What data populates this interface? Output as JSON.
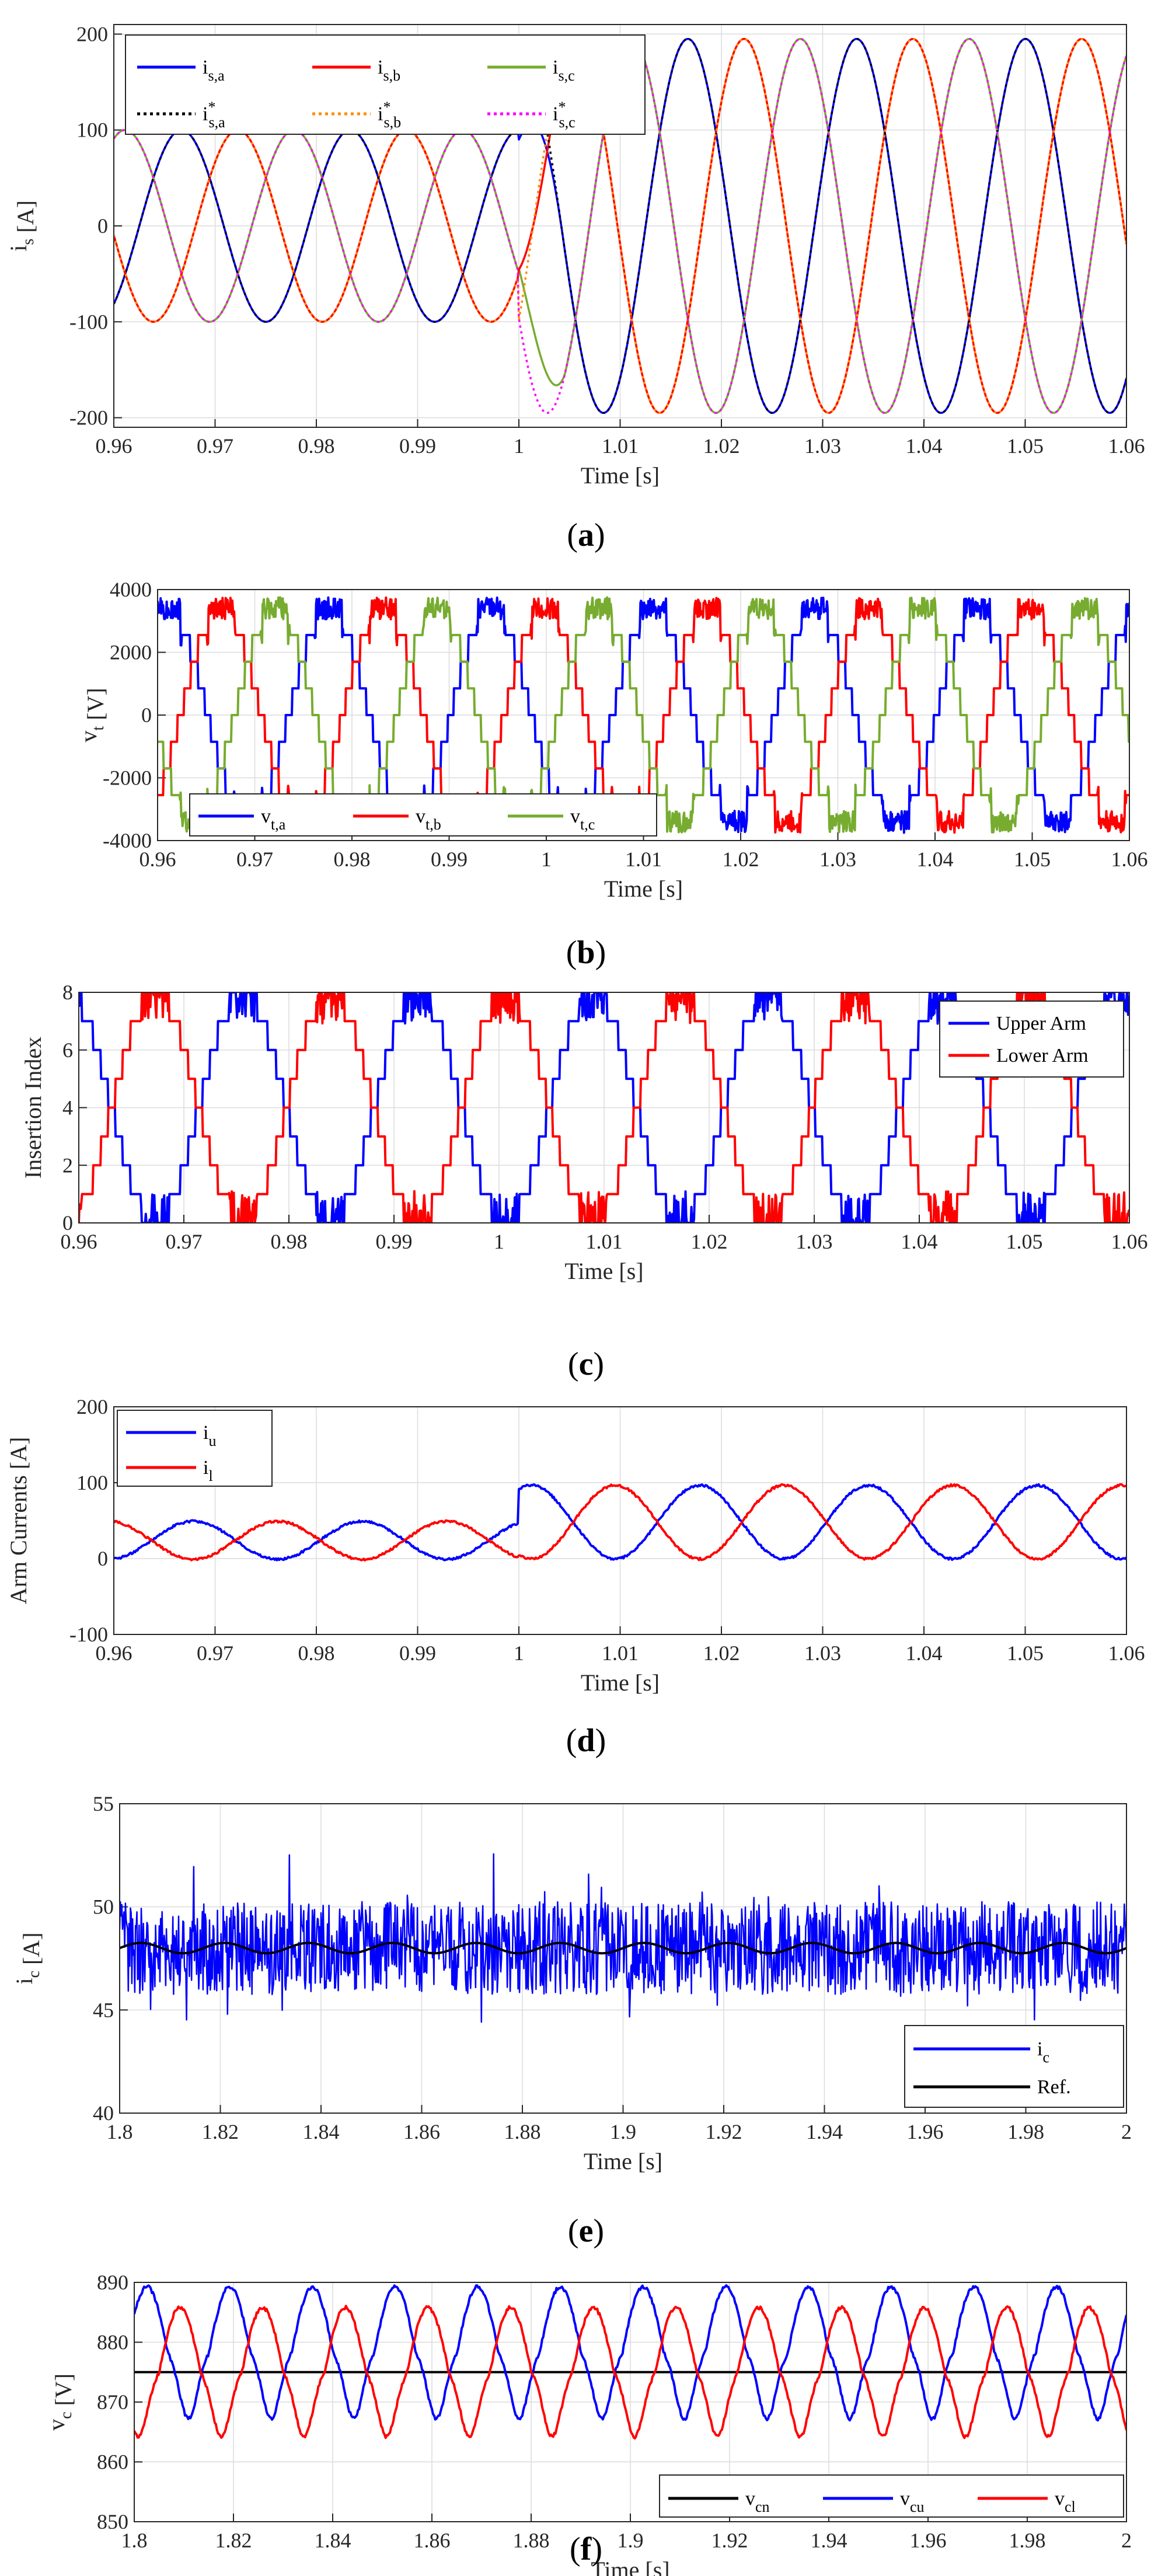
{
  "chart_data": [
    {
      "id": "a",
      "type": "line",
      "panel_label": "(a)",
      "xlabel": "Time [s]",
      "ylabel_main": "i",
      "ylabel_sub": "s",
      "ylabel_unit": " [A]",
      "xlim": [
        0.96,
        1.06
      ],
      "ylim": [
        -210,
        210
      ],
      "grid": true,
      "xticks": [
        "0.96",
        "0.97",
        "0.98",
        "0.99",
        "1",
        "1.01",
        "1.02",
        "1.03",
        "1.04",
        "1.05",
        "1.06"
      ],
      "yticks": [
        "-200",
        "-100",
        "0",
        "100",
        "200"
      ],
      "signal": {
        "frequency_hz": 60,
        "amplitude_before": 100,
        "amplitude_after": 195,
        "step_time": 1.0
      },
      "legend_position": "top-left",
      "series": [
        {
          "name": "i",
          "sub": "s,a",
          "sup": "",
          "color": "#0000ff",
          "dash": "solid",
          "phase_deg": 0
        },
        {
          "name": "i",
          "sub": "s,b",
          "sup": "",
          "color": "#ff0000",
          "dash": "solid",
          "phase_deg": -120
        },
        {
          "name": "i",
          "sub": "s,c",
          "sup": "",
          "color": "#77ac30",
          "dash": "solid",
          "phase_deg": 120
        },
        {
          "name": "i",
          "sub": "s,a",
          "sup": "*",
          "color": "#000000",
          "dash": "dotted",
          "phase_deg": 0
        },
        {
          "name": "i",
          "sub": "s,b",
          "sup": "*",
          "color": "#ff8c00",
          "dash": "dotted",
          "phase_deg": -120
        },
        {
          "name": "i",
          "sub": "s,c",
          "sup": "*",
          "color": "#ff00ff",
          "dash": "dotted",
          "phase_deg": 120
        }
      ]
    },
    {
      "id": "b",
      "type": "line",
      "panel_label": "(b)",
      "xlabel": "Time [s]",
      "ylabel_main": "v",
      "ylabel_sub": "t",
      "ylabel_unit": " [V]",
      "xlim": [
        0.96,
        1.06
      ],
      "ylim": [
        -4000,
        4000
      ],
      "grid": true,
      "xticks": [
        "0.96",
        "0.97",
        "0.98",
        "0.99",
        "1",
        "1.01",
        "1.02",
        "1.03",
        "1.04",
        "1.05",
        "1.06"
      ],
      "yticks": [
        "-4000",
        "-2000",
        "0",
        "2000",
        "4000"
      ],
      "signal": {
        "frequency_hz": 60,
        "amplitude": 3400,
        "levels": 8
      },
      "legend_position": "bottom-left",
      "series": [
        {
          "name": "v",
          "sub": "t,a",
          "sup": "",
          "color": "#0000ff",
          "dash": "solid",
          "phase_deg": 0
        },
        {
          "name": "v",
          "sub": "t,b",
          "sup": "",
          "color": "#ff0000",
          "dash": "solid",
          "phase_deg": -120
        },
        {
          "name": "v",
          "sub": "t,c",
          "sup": "",
          "color": "#77ac30",
          "dash": "solid",
          "phase_deg": 120
        }
      ]
    },
    {
      "id": "c",
      "type": "line",
      "panel_label": "(c)",
      "xlabel": "Time [s]",
      "ylabel_main": "Insertion Index",
      "ylabel_sub": "",
      "ylabel_unit": "",
      "xlim": [
        0.96,
        1.06
      ],
      "ylim": [
        0,
        8
      ],
      "grid": true,
      "xticks": [
        "0.96",
        "0.97",
        "0.98",
        "0.99",
        "1",
        "1.01",
        "1.02",
        "1.03",
        "1.04",
        "1.05",
        "1.06"
      ],
      "yticks": [
        "0",
        "2",
        "4",
        "6",
        "8"
      ],
      "signal": {
        "frequency_hz": 60,
        "levels": 8
      },
      "legend_position": "top-right",
      "series": [
        {
          "name": "Upper Arm",
          "sub": "",
          "sup": "",
          "color": "#0000ff",
          "dash": "solid"
        },
        {
          "name": "Lower Arm",
          "sub": "",
          "sup": "",
          "color": "#ff0000",
          "dash": "solid"
        }
      ]
    },
    {
      "id": "d",
      "type": "line",
      "panel_label": "(d)",
      "xlabel": "Time [s]",
      "ylabel_main": "Arm Currents [A]",
      "ylabel_sub": "",
      "ylabel_unit": "",
      "xlim": [
        0.96,
        1.06
      ],
      "ylim": [
        -100,
        200
      ],
      "grid": true,
      "xticks": [
        "0.96",
        "0.97",
        "0.98",
        "0.99",
        "1",
        "1.01",
        "1.02",
        "1.03",
        "1.04",
        "1.05",
        "1.06"
      ],
      "yticks": [
        "-100",
        "0",
        "100",
        "200"
      ],
      "signal": {
        "frequency_hz": 60,
        "offset_before": 24,
        "amplitude_before": 50,
        "offset_after": 48,
        "amplitude_after": 97,
        "step_time": 1.0
      },
      "legend_position": "top-left",
      "series": [
        {
          "name": "i",
          "sub": "u",
          "sup": "",
          "color": "#0000ff",
          "dash": "solid"
        },
        {
          "name": "i",
          "sub": "l",
          "sup": "",
          "color": "#ff0000",
          "dash": "solid"
        }
      ]
    },
    {
      "id": "e",
      "type": "line",
      "panel_label": "(e)",
      "xlabel": "Time [s]",
      "ylabel_main": "i",
      "ylabel_sub": "c",
      "ylabel_unit": " [A]",
      "xlim": [
        1.8,
        2.0
      ],
      "ylim": [
        40,
        55
      ],
      "grid": true,
      "xticks": [
        "1.8",
        "1.82",
        "1.84",
        "1.86",
        "1.88",
        "1.9",
        "1.92",
        "1.94",
        "1.96",
        "1.98",
        "2"
      ],
      "yticks": [
        "40",
        "45",
        "50",
        "55"
      ],
      "signal": {
        "mean": 48,
        "noise_range": [
          44,
          51.5
        ]
      },
      "legend_position": "bottom-right",
      "series": [
        {
          "name": "i",
          "sub": "c",
          "sup": "",
          "color": "#0000ff",
          "dash": "solid"
        },
        {
          "name": "Ref.",
          "sub": "",
          "sup": "",
          "color": "#000000",
          "dash": "solid"
        }
      ]
    },
    {
      "id": "f",
      "type": "line",
      "panel_label": "(f)",
      "xlabel": "Time [s]",
      "ylabel_main": "v",
      "ylabel_sub": "c",
      "ylabel_unit": " [V]",
      "xlim": [
        1.8,
        2.0
      ],
      "ylim": [
        850,
        890
      ],
      "grid": true,
      "xticks": [
        "1.8",
        "1.82",
        "1.84",
        "1.86",
        "1.88",
        "1.9",
        "1.92",
        "1.94",
        "1.96",
        "1.98",
        "2"
      ],
      "yticks": [
        "850",
        "860",
        "870",
        "880",
        "890"
      ],
      "signal": {
        "frequency_hz": 60,
        "vcn": 875,
        "vcu_range": [
          867,
          889.5
        ],
        "vcl_range": [
          864,
          886
        ]
      },
      "legend_position": "bottom-right",
      "series": [
        {
          "name": "v",
          "sub": "cn",
          "sup": "",
          "color": "#000000",
          "dash": "solid"
        },
        {
          "name": "v",
          "sub": "cu",
          "sup": "",
          "color": "#0000ff",
          "dash": "solid"
        },
        {
          "name": "v",
          "sub": "cl",
          "sup": "",
          "color": "#ff0000",
          "dash": "solid"
        }
      ]
    }
  ]
}
